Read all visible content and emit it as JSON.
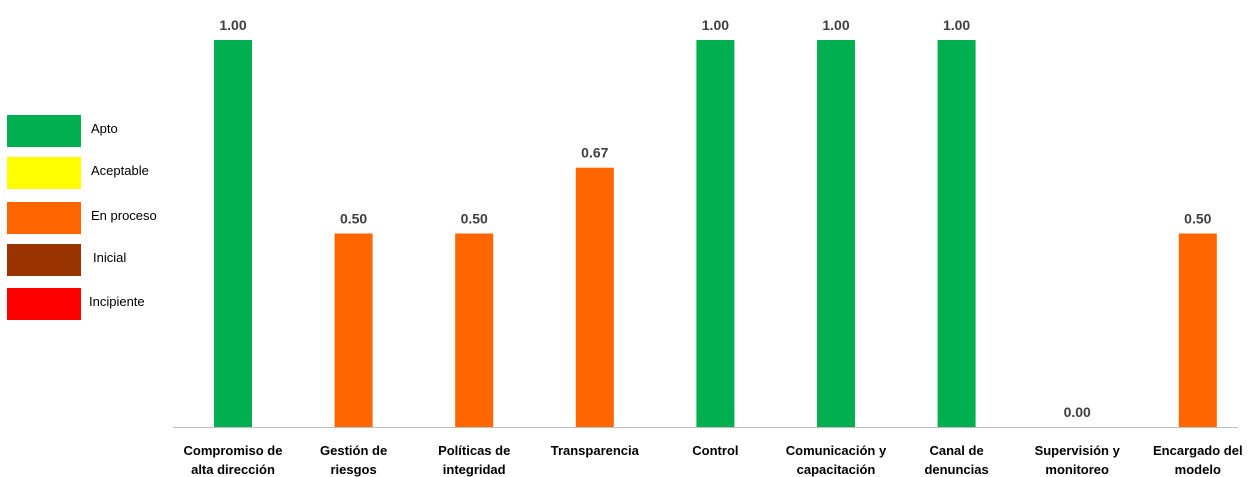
{
  "legend": {
    "items": [
      {
        "label": "Apto",
        "color": "#00B050"
      },
      {
        "label": "Aceptable",
        "color": "#FFFF00"
      },
      {
        "label": "En proceso",
        "color": "#FF6600"
      },
      {
        "label": "Inicial",
        "color": "#993300"
      },
      {
        "label": "Incipiente",
        "color": "#FF0000"
      }
    ]
  },
  "chart_data": {
    "type": "bar",
    "title": "",
    "xlabel": "",
    "ylabel": "",
    "ylim": [
      0,
      1
    ],
    "grid": false,
    "legend_position": "left",
    "categories": [
      [
        "Compromiso de",
        "alta dirección"
      ],
      [
        "Gestión de",
        "riesgos"
      ],
      [
        "Políticas de",
        "integridad"
      ],
      [
        "Transparencia"
      ],
      [
        "Control"
      ],
      [
        "Comunicación y",
        "capacitación"
      ],
      [
        "Canal de",
        "denuncias"
      ],
      [
        "Supervisión y",
        "monitoreo"
      ],
      [
        "Encargado del",
        "modelo"
      ]
    ],
    "values": [
      1.0,
      0.5,
      0.5,
      0.67,
      1.0,
      1.0,
      1.0,
      0.0,
      0.5
    ],
    "value_labels": [
      "1.00",
      "0.50",
      "0.50",
      "0.67",
      "1.00",
      "1.00",
      "1.00",
      "0.00",
      "0.50"
    ],
    "bar_colors": [
      "#00B050",
      "#FF6600",
      "#FF6600",
      "#FF6600",
      "#00B050",
      "#00B050",
      "#00B050",
      "#00B050",
      "#FF6600"
    ]
  }
}
